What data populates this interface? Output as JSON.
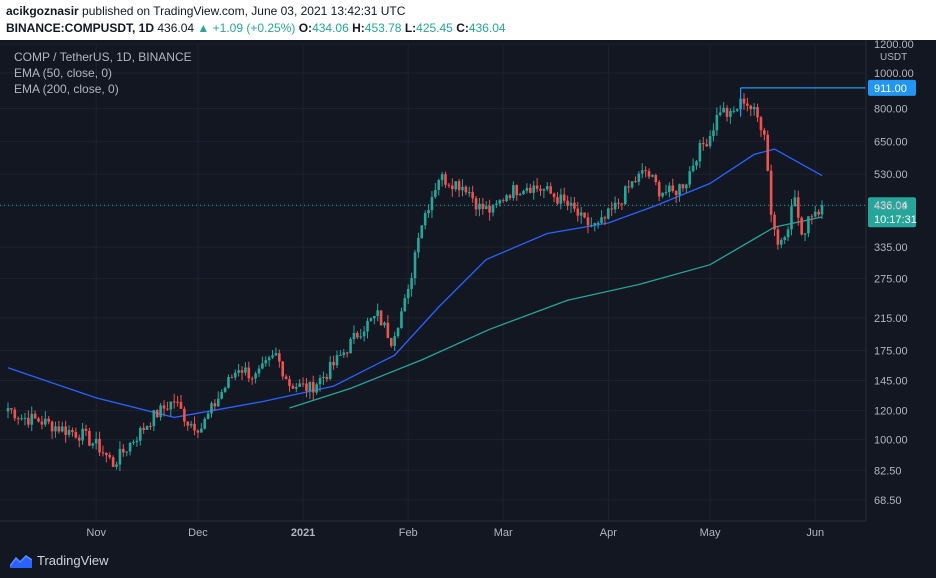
{
  "header": {
    "user": "acikgoznasir",
    "published": "published on TradingView.com, June 03, 2021 13:42:31 UTC",
    "symbol": "BINANCE:COMPUSDT, 1D",
    "last": "436.04",
    "change": "+1.09 (+0.25%)",
    "open_label": "O:",
    "open": "434.06",
    "high_label": "H:",
    "high": "453.78",
    "low_label": "L:",
    "low": "425.45",
    "close_label": "C:",
    "close": "436.04"
  },
  "legend": {
    "title": "COMP / TetherUS, 1D, BINANCE",
    "ema50": "EMA (50, close, 0)",
    "ema200": "EMA (200, close, 0)"
  },
  "footer": {
    "brand": "TradingView",
    "icon": "tradingview-logo-icon"
  },
  "colors": {
    "up": "#26a69a",
    "down": "#ef5350",
    "ema50": "#2962ff",
    "ema200": "#26a69a",
    "bg": "#131722",
    "grid": "#1e2230",
    "hline": "#2196f3"
  },
  "chart_data": {
    "type": "candlestick",
    "scale": "log",
    "ylim": [
      60,
      1200
    ],
    "currency": "USDT",
    "y_ticks": [
      "1200.00",
      "1000.00",
      "800.00",
      "650.00",
      "530.00",
      "435.00",
      "335.00",
      "275.00",
      "215.00",
      "175.00",
      "145.00",
      "120.00",
      "100.00",
      "82.50",
      "68.50"
    ],
    "x_ticks": [
      {
        "label": "Nov",
        "date": "2020-11-01"
      },
      {
        "label": "Dec",
        "date": "2020-12-01"
      },
      {
        "label": "2021",
        "date": "2021-01-01"
      },
      {
        "label": "Feb",
        "date": "2021-02-01"
      },
      {
        "label": "Mar",
        "date": "2021-03-01"
      },
      {
        "label": "Apr",
        "date": "2021-04-01"
      },
      {
        "label": "May",
        "date": "2021-05-01"
      },
      {
        "label": "Jun",
        "date": "2021-06-01"
      }
    ],
    "date_range": [
      "2020-10-06",
      "2021-06-03"
    ],
    "ohlc_anchors": [
      {
        "date": "2020-10-06",
        "close": 122
      },
      {
        "date": "2020-10-10",
        "close": 115
      },
      {
        "date": "2020-10-15",
        "close": 113
      },
      {
        "date": "2020-10-22",
        "close": 107
      },
      {
        "date": "2020-10-28",
        "close": 103
      },
      {
        "date": "2020-11-02",
        "close": 95
      },
      {
        "date": "2020-11-06",
        "close": 86
      },
      {
        "date": "2020-11-12",
        "close": 100
      },
      {
        "date": "2020-11-18",
        "close": 116
      },
      {
        "date": "2020-11-24",
        "close": 128
      },
      {
        "date": "2020-11-28",
        "close": 112
      },
      {
        "date": "2020-12-02",
        "close": 108
      },
      {
        "date": "2020-12-08",
        "close": 135
      },
      {
        "date": "2020-12-13",
        "close": 158
      },
      {
        "date": "2020-12-18",
        "close": 148
      },
      {
        "date": "2020-12-24",
        "close": 170
      },
      {
        "date": "2020-12-28",
        "close": 142
      },
      {
        "date": "2021-01-03",
        "close": 138
      },
      {
        "date": "2021-01-08",
        "close": 152
      },
      {
        "date": "2021-01-14",
        "close": 178
      },
      {
        "date": "2021-01-18",
        "close": 200
      },
      {
        "date": "2021-01-23",
        "close": 218
      },
      {
        "date": "2021-01-27",
        "close": 188
      },
      {
        "date": "2021-02-01",
        "close": 250
      },
      {
        "date": "2021-02-04",
        "close": 370
      },
      {
        "date": "2021-02-07",
        "close": 440
      },
      {
        "date": "2021-02-10",
        "close": 520
      },
      {
        "date": "2021-02-14",
        "close": 505
      },
      {
        "date": "2021-02-18",
        "close": 490
      },
      {
        "date": "2021-02-22",
        "close": 430
      },
      {
        "date": "2021-02-26",
        "close": 420
      },
      {
        "date": "2021-03-02",
        "close": 470
      },
      {
        "date": "2021-03-08",
        "close": 495
      },
      {
        "date": "2021-03-13",
        "close": 480
      },
      {
        "date": "2021-03-18",
        "close": 450
      },
      {
        "date": "2021-03-22",
        "close": 420
      },
      {
        "date": "2021-03-25",
        "close": 390
      },
      {
        "date": "2021-03-29",
        "close": 380
      },
      {
        "date": "2021-04-03",
        "close": 430
      },
      {
        "date": "2021-04-08",
        "close": 500
      },
      {
        "date": "2021-04-12",
        "close": 540
      },
      {
        "date": "2021-04-16",
        "close": 480
      },
      {
        "date": "2021-04-20",
        "close": 470
      },
      {
        "date": "2021-04-24",
        "close": 510
      },
      {
        "date": "2021-04-27",
        "close": 600
      },
      {
        "date": "2021-05-01",
        "close": 680
      },
      {
        "date": "2021-05-04",
        "close": 800
      },
      {
        "date": "2021-05-07",
        "close": 760
      },
      {
        "date": "2021-05-11",
        "close": 850
      },
      {
        "date": "2021-05-14",
        "close": 780
      },
      {
        "date": "2021-05-17",
        "close": 700
      },
      {
        "date": "2021-05-19",
        "close": 420
      },
      {
        "date": "2021-05-21",
        "close": 340
      },
      {
        "date": "2021-05-24",
        "close": 390
      },
      {
        "date": "2021-05-26",
        "close": 460
      },
      {
        "date": "2021-05-28",
        "close": 350
      },
      {
        "date": "2021-05-30",
        "close": 410
      },
      {
        "date": "2021-06-03",
        "close": 436
      }
    ],
    "ema50_points": [
      {
        "date": "2020-10-06",
        "value": 157
      },
      {
        "date": "2020-11-01",
        "value": 130
      },
      {
        "date": "2020-11-24",
        "value": 115
      },
      {
        "date": "2020-12-20",
        "value": 127
      },
      {
        "date": "2021-01-10",
        "value": 140
      },
      {
        "date": "2021-01-28",
        "value": 170
      },
      {
        "date": "2021-02-10",
        "value": 230
      },
      {
        "date": "2021-02-24",
        "value": 310
      },
      {
        "date": "2021-03-14",
        "value": 365
      },
      {
        "date": "2021-04-01",
        "value": 390
      },
      {
        "date": "2021-04-15",
        "value": 435
      },
      {
        "date": "2021-05-01",
        "value": 500
      },
      {
        "date": "2021-05-14",
        "value": 600
      },
      {
        "date": "2021-05-20",
        "value": 620
      },
      {
        "date": "2021-06-03",
        "value": 525
      }
    ],
    "ema200_points": [
      {
        "date": "2020-12-28",
        "value": 122
      },
      {
        "date": "2021-01-15",
        "value": 138
      },
      {
        "date": "2021-02-05",
        "value": 165
      },
      {
        "date": "2021-02-25",
        "value": 200
      },
      {
        "date": "2021-03-20",
        "value": 240
      },
      {
        "date": "2021-04-10",
        "value": 265
      },
      {
        "date": "2021-05-01",
        "value": 300
      },
      {
        "date": "2021-05-20",
        "value": 380
      },
      {
        "date": "2021-06-03",
        "value": 405
      }
    ],
    "annotations": [
      {
        "type": "horizontal-level",
        "value": 911.0,
        "label": "911.00",
        "from_date": "2021-05-10"
      },
      {
        "type": "last-price",
        "value": 436.04,
        "label": "436.04",
        "countdown": "10:17:31"
      }
    ]
  }
}
